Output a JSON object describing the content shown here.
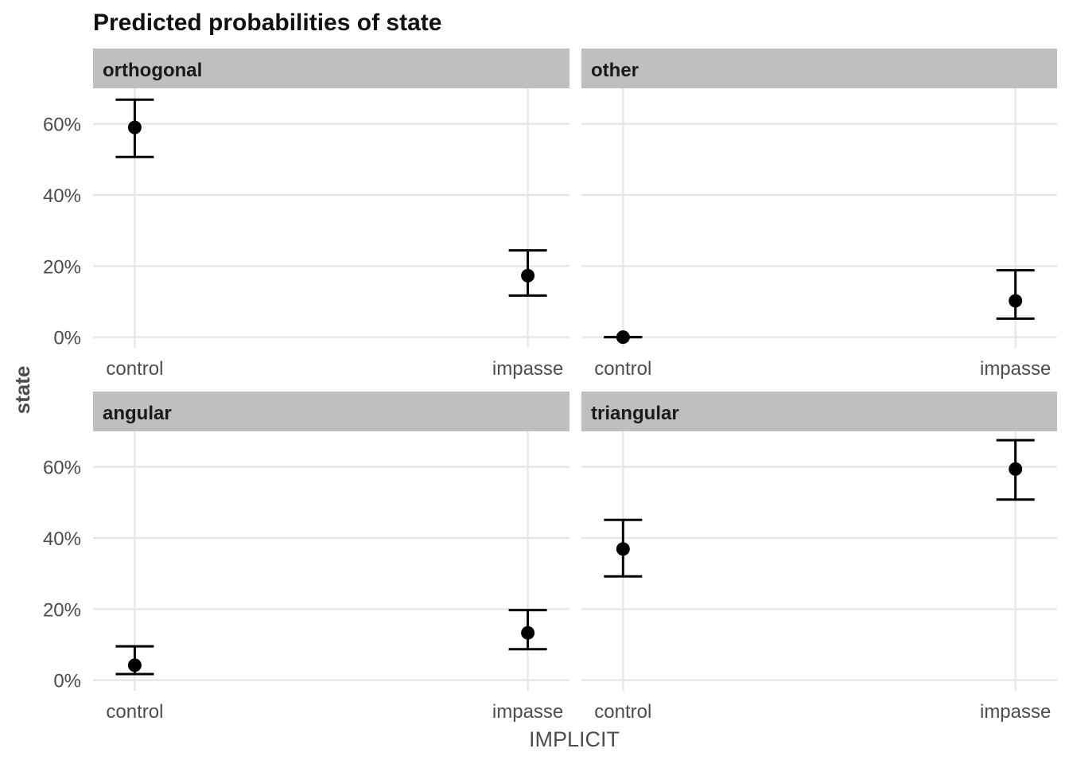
{
  "chart_data": {
    "type": "scatter",
    "title": "Predicted probabilities of state",
    "xlabel": "IMPLICIT",
    "ylabel": "state",
    "categories": [
      "control",
      "impasse"
    ],
    "ylim": [
      -0.03,
      0.7
    ],
    "yticks": [
      0,
      0.2,
      0.4,
      0.6
    ],
    "ytick_labels": [
      "0%",
      "20%",
      "40%",
      "60%"
    ],
    "grid": true,
    "legend": "none",
    "panels": [
      {
        "name": "orthogonal",
        "points": [
          {
            "x": "control",
            "y": 0.59,
            "ymin": 0.507,
            "ymax": 0.668
          },
          {
            "x": "impasse",
            "y": 0.173,
            "ymin": 0.117,
            "ymax": 0.244
          }
        ]
      },
      {
        "name": "other",
        "points": [
          {
            "x": "control",
            "y": 0.0,
            "ymin": 0.0,
            "ymax": 0.0
          },
          {
            "x": "impasse",
            "y": 0.102,
            "ymin": 0.052,
            "ymax": 0.188
          }
        ]
      },
      {
        "name": "angular",
        "points": [
          {
            "x": "control",
            "y": 0.042,
            "ymin": 0.017,
            "ymax": 0.095
          },
          {
            "x": "impasse",
            "y": 0.133,
            "ymin": 0.087,
            "ymax": 0.197
          }
        ]
      },
      {
        "name": "triangular",
        "points": [
          {
            "x": "control",
            "y": 0.369,
            "ymin": 0.292,
            "ymax": 0.451
          },
          {
            "x": "impasse",
            "y": 0.594,
            "ymin": 0.508,
            "ymax": 0.675
          }
        ]
      }
    ]
  }
}
